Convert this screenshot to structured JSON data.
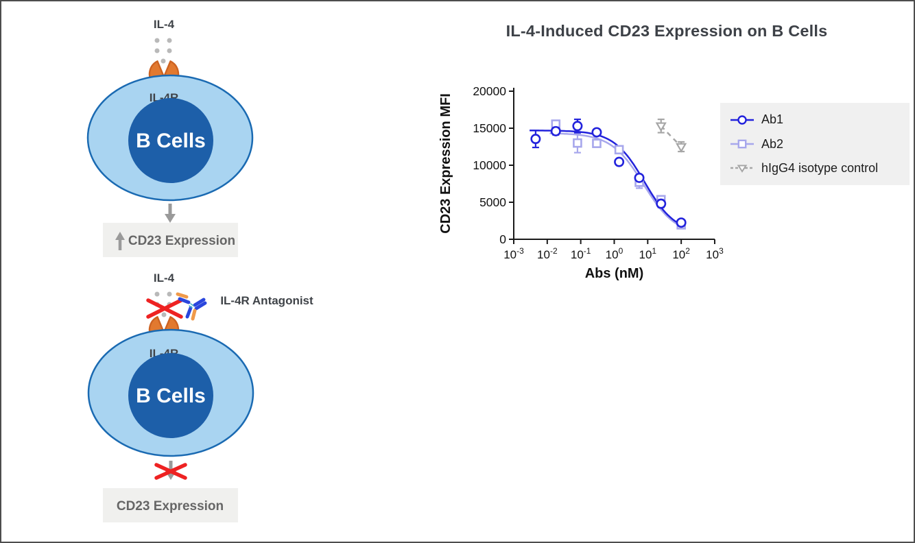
{
  "figure": {
    "background": "#ffffff",
    "border_color": "#4d4d4d"
  },
  "pathway_top": {
    "ligand": "IL-4",
    "receptor": "IL-4R",
    "cell": "B Cells",
    "outcome": "CD23 Expression",
    "outcome_state": "increased"
  },
  "pathway_bottom": {
    "ligand": "IL-4",
    "receptor": "IL-4R",
    "antagonist": "IL-4R Antagonist",
    "cell": "B Cells",
    "outcome": "CD23 Expression",
    "outcome_state": "blocked"
  },
  "colors": {
    "cell_fill": "#a9d4f1",
    "cell_border": "#1a6ab2",
    "nucleus": "#1d5fa9",
    "receptor_fill": "#e2792f",
    "receptor_border": "#cd6322",
    "gray_arrow": "#9a9a9a",
    "dot_gray": "#b9b9b9",
    "red_cross": "#ee2222",
    "box_bg": "#f0f0ee",
    "box_text": "#666666",
    "label_text": "#3f4348",
    "antibody_blue": "#2a46dd",
    "antibody_orange": "#f09a4a",
    "antibody_hinge": "#3fb3c6",
    "axis": "#1a1a1a"
  },
  "chart": {
    "title": "IL-4-Induced CD23 Expression on B Cells",
    "title_color": "#3d4147"
  },
  "chart_data": {
    "type": "scatter",
    "title": "IL-4-Induced CD23 Expression on B Cells",
    "xlabel": "Abs (nM)",
    "ylabel": "CD23 Expression MFI",
    "x_scale": "log10",
    "x_tick_exponents": [
      -3,
      -2,
      -1,
      0,
      1,
      2,
      3
    ],
    "ylim": [
      0,
      20000
    ],
    "y_ticks": [
      0,
      5000,
      10000,
      15000,
      20000
    ],
    "grid": false,
    "legend_position": "right",
    "legend_bg": "#f0f0f0",
    "series": [
      {
        "name": "Ab1",
        "marker": "circle",
        "color": "#2222dc",
        "line": "fit",
        "x": [
          0.0045,
          0.018,
          0.08,
          0.3,
          1.4,
          5.6,
          25,
          100
        ],
        "y": [
          13550,
          14600,
          15300,
          14450,
          10450,
          8300,
          4800,
          2250
        ],
        "y_err": [
          1150,
          500,
          900,
          450,
          350,
          350,
          500,
          300
        ],
        "fit": {
          "top": 14700,
          "bottom": 800,
          "ec50": 8,
          "hill": 0.95
        }
      },
      {
        "name": "Ab2",
        "marker": "square",
        "color": "#a7a7ec",
        "line": "fit",
        "x": [
          0.018,
          0.08,
          0.3,
          1.4,
          5.6,
          25,
          100
        ],
        "y": [
          15550,
          13000,
          12950,
          12100,
          7700,
          5350,
          1950
        ],
        "y_err": [
          500,
          1300,
          350,
          400,
          800,
          500,
          350
        ],
        "fit": {
          "top": 14350,
          "bottom": 500,
          "ec50": 7.5,
          "hill": 0.9
        }
      },
      {
        "name": "hIgG4 isotype control",
        "marker": "triangle-down",
        "color": "#a6a6a6",
        "line": "dashed",
        "x": [
          25,
          100
        ],
        "y": [
          15300,
          12500
        ],
        "y_err": [
          900,
          650
        ]
      }
    ]
  }
}
